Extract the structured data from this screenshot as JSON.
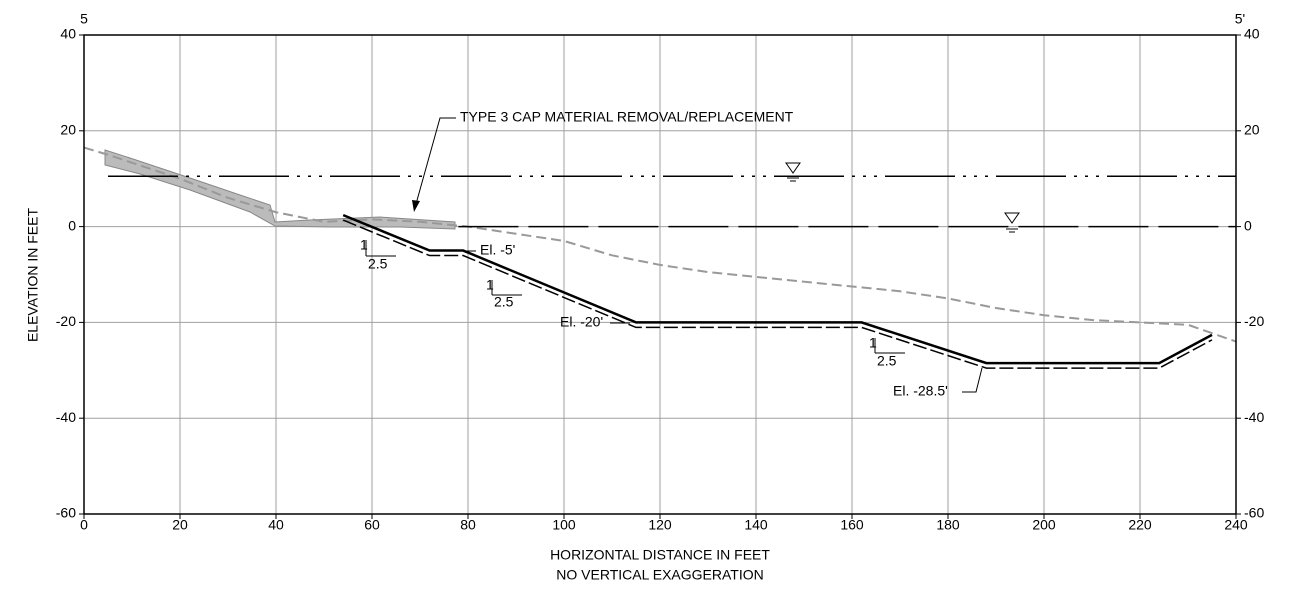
{
  "chart_data": {
    "type": "line",
    "corner_labels": [
      "5",
      "5'"
    ],
    "ylabel": "ELEVATION IN FEET",
    "xlabel": "HORIZONTAL DISTANCE IN FEET",
    "subtitle": "NO VERTICAL EXAGGERATION",
    "xlim": [
      0,
      240
    ],
    "xticks": [
      0,
      20,
      40,
      60,
      80,
      100,
      120,
      140,
      160,
      180,
      200,
      220,
      240
    ],
    "ylim": [
      -60,
      40
    ],
    "yticks": [
      40,
      20,
      0,
      -20,
      -40,
      -60
    ],
    "y2lim": [
      -60,
      40
    ],
    "y2ticks": [
      40,
      20,
      0,
      -20,
      -40,
      -60
    ],
    "grid": true,
    "series": [
      {
        "color": "#999999",
        "dash": "dashed",
        "x": [
          0,
          5,
          20,
          30,
          40,
          50,
          60,
          70,
          80,
          90,
          100,
          110,
          120,
          130,
          140,
          150,
          160,
          170,
          180,
          190,
          200,
          210,
          220,
          230,
          240
        ],
        "values": [
          16.5,
          15,
          10,
          6,
          3,
          1,
          1.5,
          1,
          0,
          -1.5,
          -3,
          -6,
          -8,
          -9.5,
          -10.5,
          -11.5,
          -12.5,
          -13.5,
          -15,
          -17,
          -18.5,
          -19.5,
          -20,
          -20.5,
          -24
        ]
      },
      {
        "color": "#000000",
        "dash": "solid",
        "x": [
          54,
          72,
          79,
          115,
          162,
          188,
          224,
          235
        ],
        "values": [
          2.4,
          -5,
          -5,
          -20,
          -20,
          -28.5,
          -28.5,
          -22.6
        ]
      },
      {
        "color": "#000000",
        "dash": "dash-dot-dot",
        "x": [
          5,
          240
        ],
        "values": [
          10.5,
          10.5
        ]
      },
      {
        "color": "#000000",
        "dash": "long-dash",
        "x": [
          78,
          240
        ],
        "values": [
          0,
          0
        ]
      }
    ],
    "annotations": [
      "TYPE 3 CAP MATERIAL REMOVAL/REPLACEMENT",
      "El. -5'",
      "El. -20'",
      "El. -28.5'"
    ],
    "slopes": [
      {
        "rise": "1",
        "run": "2.5"
      },
      {
        "rise": "1",
        "run": "2.5"
      },
      {
        "rise": "1",
        "run": "2.5"
      }
    ]
  }
}
